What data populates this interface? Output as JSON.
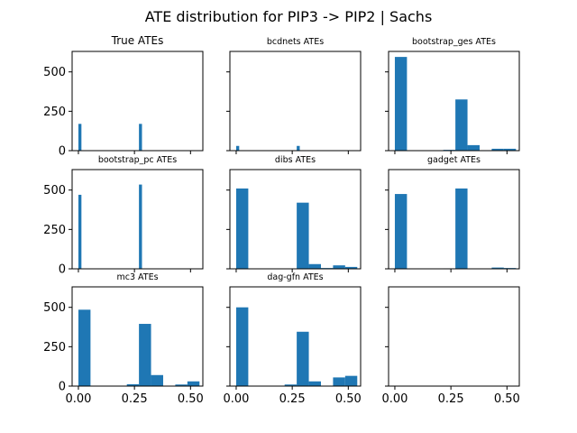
{
  "figure": {
    "suptitle": "ATE distribution for PIP3 -> PIP2 | Sachs"
  },
  "colors": {
    "bar": "#1f77b4",
    "frame": "#000000",
    "background": "#ffffff"
  },
  "chart_data": [
    {
      "type": "bar",
      "title": "True ATEs",
      "xlim": [
        -0.028,
        0.555
      ],
      "ylim": [
        0,
        630
      ],
      "bars": [
        {
          "x": [
            0.0,
            0.0135
          ],
          "value": 170
        },
        {
          "x": [
            0.27,
            0.2835
          ],
          "value": 170
        }
      ]
    },
    {
      "type": "bar",
      "title": "bcdnets ATEs",
      "xlim": [
        -0.028,
        0.555
      ],
      "ylim": [
        0,
        630
      ],
      "bars": [
        {
          "x": [
            0.0,
            0.0135
          ],
          "value": 30
        },
        {
          "x": [
            0.27,
            0.2835
          ],
          "value": 30
        }
      ]
    },
    {
      "type": "bar",
      "title": "bootstrap_ges ATEs",
      "xlim": [
        -0.028,
        0.555
      ],
      "ylim": [
        0,
        630
      ],
      "bars": [
        {
          "x": [
            0.0,
            0.054
          ],
          "value": 595
        },
        {
          "x": [
            0.216,
            0.27
          ],
          "value": 5
        },
        {
          "x": [
            0.27,
            0.324
          ],
          "value": 325
        },
        {
          "x": [
            0.324,
            0.378
          ],
          "value": 35
        },
        {
          "x": [
            0.378,
            0.432
          ],
          "value": 3
        },
        {
          "x": [
            0.432,
            0.486
          ],
          "value": 12
        },
        {
          "x": [
            0.486,
            0.54
          ],
          "value": 12
        }
      ]
    },
    {
      "type": "bar",
      "title": "bootstrap_pc ATEs",
      "xlim": [
        -0.028,
        0.555
      ],
      "ylim": [
        0,
        630
      ],
      "bars": [
        {
          "x": [
            0.0,
            0.0135
          ],
          "value": 470
        },
        {
          "x": [
            0.27,
            0.2835
          ],
          "value": 535
        }
      ]
    },
    {
      "type": "bar",
      "title": "dibs ATEs",
      "xlim": [
        -0.028,
        0.555
      ],
      "ylim": [
        0,
        630
      ],
      "bars": [
        {
          "x": [
            0.0,
            0.054
          ],
          "value": 510
        },
        {
          "x": [
            0.216,
            0.27
          ],
          "value": 2
        },
        {
          "x": [
            0.27,
            0.324
          ],
          "value": 420
        },
        {
          "x": [
            0.324,
            0.378
          ],
          "value": 30
        },
        {
          "x": [
            0.378,
            0.432
          ],
          "value": 5
        },
        {
          "x": [
            0.432,
            0.486
          ],
          "value": 22
        },
        {
          "x": [
            0.486,
            0.54
          ],
          "value": 12
        }
      ]
    },
    {
      "type": "bar",
      "title": "gadget ATEs",
      "xlim": [
        -0.028,
        0.555
      ],
      "ylim": [
        0,
        630
      ],
      "bars": [
        {
          "x": [
            0.0,
            0.054
          ],
          "value": 475
        },
        {
          "x": [
            0.216,
            0.27
          ],
          "value": 3
        },
        {
          "x": [
            0.27,
            0.324
          ],
          "value": 510
        },
        {
          "x": [
            0.432,
            0.486
          ],
          "value": 8
        },
        {
          "x": [
            0.486,
            0.54
          ],
          "value": 5
        }
      ]
    },
    {
      "type": "bar",
      "title": "mc3 ATEs",
      "xlim": [
        -0.028,
        0.555
      ],
      "ylim": [
        0,
        630
      ],
      "bars": [
        {
          "x": [
            0.0,
            0.054
          ],
          "value": 485
        },
        {
          "x": [
            0.216,
            0.27
          ],
          "value": 12
        },
        {
          "x": [
            0.27,
            0.324
          ],
          "value": 395
        },
        {
          "x": [
            0.324,
            0.378
          ],
          "value": 70
        },
        {
          "x": [
            0.432,
            0.486
          ],
          "value": 10
        },
        {
          "x": [
            0.486,
            0.54
          ],
          "value": 30
        }
      ]
    },
    {
      "type": "bar",
      "title": "dag-gfn ATEs",
      "xlim": [
        -0.028,
        0.555
      ],
      "ylim": [
        0,
        630
      ],
      "bars": [
        {
          "x": [
            0.0,
            0.054
          ],
          "value": 500
        },
        {
          "x": [
            0.216,
            0.27
          ],
          "value": 10
        },
        {
          "x": [
            0.27,
            0.324
          ],
          "value": 345
        },
        {
          "x": [
            0.324,
            0.378
          ],
          "value": 30
        },
        {
          "x": [
            0.432,
            0.486
          ],
          "value": 55
        },
        {
          "x": [
            0.486,
            0.54
          ],
          "value": 65
        }
      ]
    },
    {
      "type": "bar",
      "title": "",
      "xlim": [
        -0.028,
        0.555
      ],
      "ylim": [
        0,
        630
      ],
      "bars": []
    }
  ],
  "axes": {
    "y_ticks": [
      0,
      250,
      500
    ],
    "y_tick_labels": [
      "0",
      "250",
      "500"
    ],
    "x_ticks": [
      0.0,
      0.25,
      0.5
    ],
    "x_tick_labels": [
      "0.00",
      "0.25",
      "0.50"
    ]
  }
}
